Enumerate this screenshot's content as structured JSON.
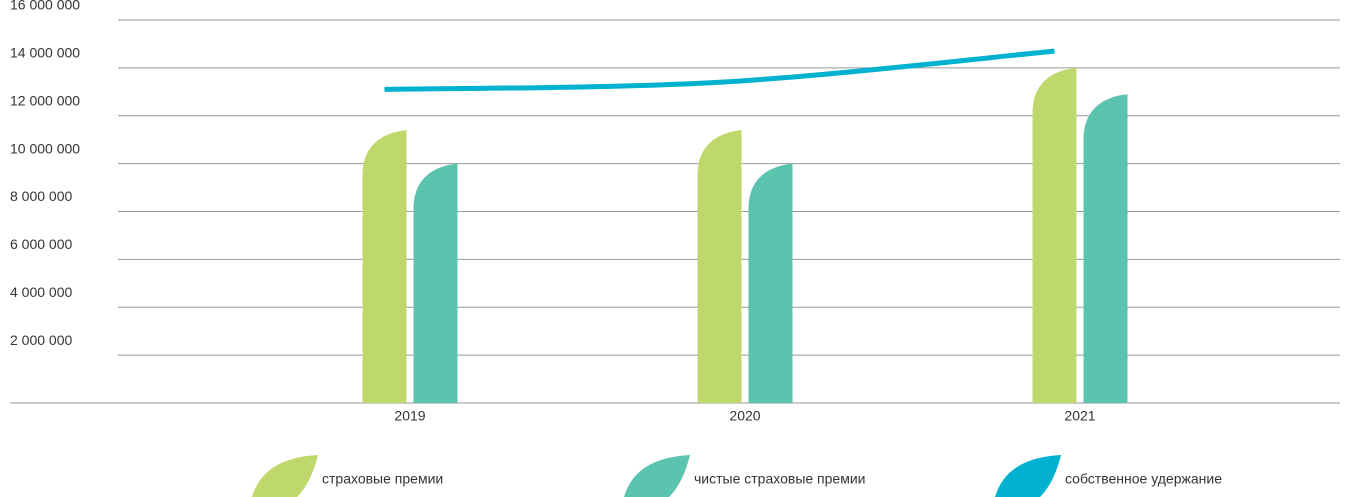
{
  "chart_data": {
    "type": "bar",
    "categories": [
      "2019",
      "2020",
      "2021"
    ],
    "series": [
      {
        "name": "страховые премии",
        "color": "#bfd86c",
        "values": [
          11400000,
          11400000,
          14000000
        ]
      },
      {
        "name": "чистые страховые премии",
        "color": "#5bc4ae",
        "values": [
          10000000,
          10000000,
          12900000
        ]
      },
      {
        "name": "собственное удержание",
        "color": "#00b2cf",
        "type": "line",
        "values": [
          13100000,
          13400000,
          14700000
        ]
      }
    ],
    "ylim": [
      0,
      16000000
    ],
    "yticks": [
      {
        "value": 2000000,
        "label": "2 000 000"
      },
      {
        "value": 4000000,
        "label": "4 000 000"
      },
      {
        "value": 6000000,
        "label": "6 000 000"
      },
      {
        "value": 8000000,
        "label": "8 000 000"
      },
      {
        "value": 10000000,
        "label": "10 000 000"
      },
      {
        "value": 12000000,
        "label": "12 000 000"
      },
      {
        "value": 14000000,
        "label": "14 000 000"
      },
      {
        "value": 16000000,
        "label": "16 000 000"
      }
    ],
    "grid": true,
    "legend": "bottom"
  }
}
